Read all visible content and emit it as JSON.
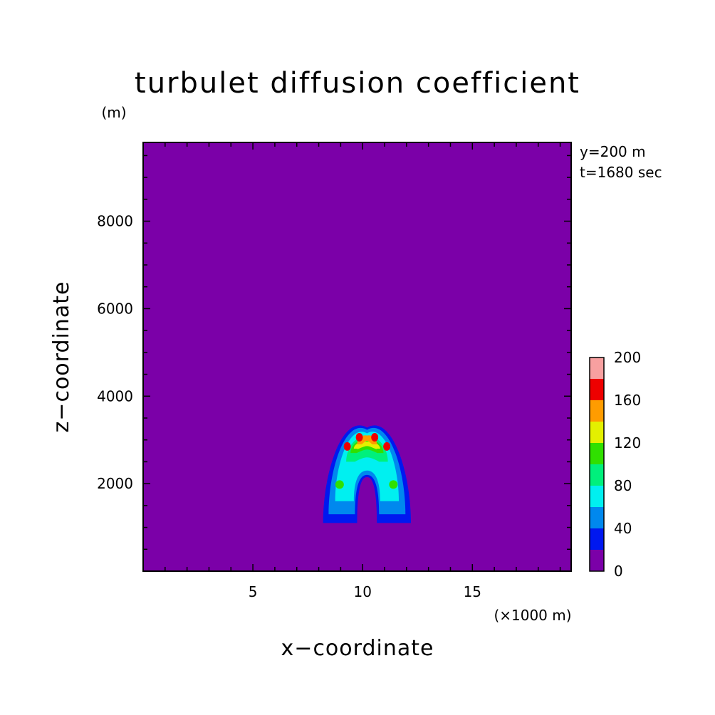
{
  "chart_data": {
    "type": "heatmap",
    "title": "turbulet diffusion coefficient",
    "xlabel": "x−coordinate",
    "ylabel": "z−coordinate",
    "x_unit": "(×1000 m)",
    "y_unit": "(m)",
    "annotations": [
      "y=200 m",
      "t=1680 sec"
    ],
    "xlim": [
      0,
      19.5
    ],
    "ylim": [
      0,
      9800
    ],
    "x_ticks": [
      5,
      10,
      15
    ],
    "y_ticks": [
      2000,
      4000,
      6000,
      8000
    ],
    "background_value": 0,
    "colorbar": {
      "levels": [
        0,
        20,
        40,
        60,
        80,
        100,
        120,
        140,
        160,
        180,
        200
      ],
      "tick_labels": [
        "0",
        "40",
        "80",
        "120",
        "160",
        "200"
      ],
      "colors": [
        "#7b00a8",
        "#0018f0",
        "#0088ee",
        "#00f0f0",
        "#00f07c",
        "#30e000",
        "#e4f000",
        "#ff9c00",
        "#ee0000",
        "#f8a0a0"
      ]
    },
    "plume": {
      "center_x": 10.2,
      "top_z": 3280,
      "base_z": 1100,
      "left_foot_x": 8.7,
      "right_foot_x": 11.8,
      "max_value": 180
    }
  }
}
